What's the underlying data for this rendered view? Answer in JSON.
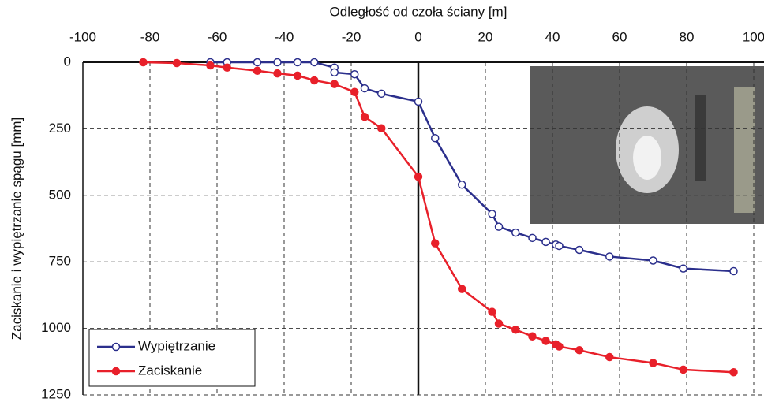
{
  "chart_data": {
    "type": "line",
    "xlabel": "Odległość od czoła ściany [m]",
    "ylabel": "Zaciskanie i wypiętrzanie spągu [mm]",
    "xlim": [
      -100,
      100
    ],
    "xticks": [
      -100,
      -80,
      -60,
      -40,
      -20,
      0,
      20,
      40,
      60,
      80,
      100
    ],
    "ylim": [
      0,
      1250
    ],
    "yticks": [
      0,
      250,
      500,
      750,
      1000,
      1250
    ],
    "y_inverted": true,
    "x_axis_top": true,
    "grid": true,
    "legend": "lower left",
    "series": [
      {
        "name": "Wypiętrzanie",
        "color": "#2b2f8c",
        "marker": "open",
        "x": [
          -62,
          -57,
          -48,
          -42,
          -36,
          -31,
          -25,
          -25,
          -19,
          -16,
          -11,
          0,
          5,
          13,
          22,
          24,
          29,
          34,
          38,
          41,
          42,
          48,
          57,
          70,
          79,
          94
        ],
        "values": [
          0,
          0,
          0,
          0,
          0,
          0,
          20,
          38,
          45,
          98,
          118,
          148,
          285,
          460,
          570,
          618,
          640,
          660,
          675,
          685,
          690,
          705,
          730,
          745,
          775,
          785
        ]
      },
      {
        "name": "Zaciskanie",
        "color": "#e8202a",
        "marker": "filled",
        "x": [
          -82,
          -72,
          -62,
          -57,
          -48,
          -42,
          -36,
          -31,
          -25,
          -19,
          -16,
          -11,
          0,
          5,
          13,
          22,
          24,
          29,
          34,
          38,
          41,
          42,
          48,
          57,
          70,
          79,
          94
        ],
        "values": [
          0,
          3,
          12,
          20,
          32,
          42,
          50,
          68,
          82,
          112,
          205,
          248,
          430,
          680,
          852,
          938,
          982,
          1005,
          1030,
          1047,
          1060,
          1068,
          1082,
          1108,
          1130,
          1155,
          1165
        ]
      }
    ]
  }
}
